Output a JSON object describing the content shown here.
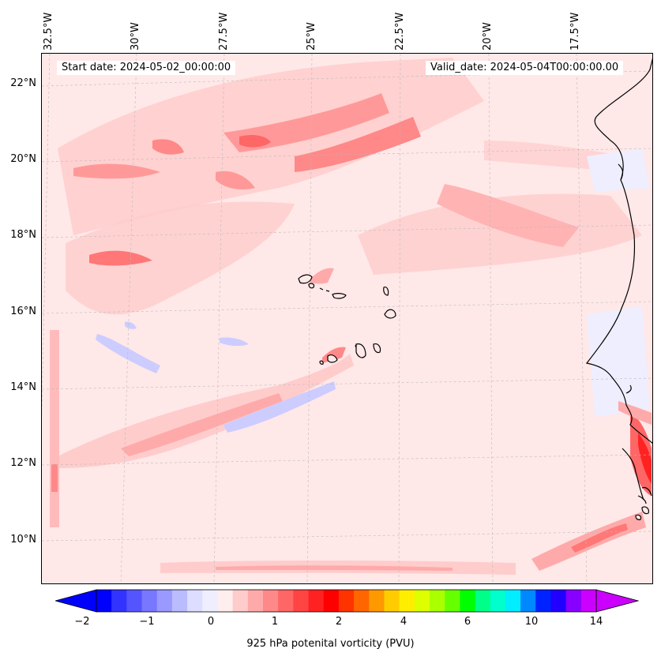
{
  "map": {
    "start_date_label": "Start date: 2024-05-02_00:00:00",
    "valid_date_label": "Valid_date: 2024-05-04T00:00:00.00",
    "longitude_labels": [
      "32.5°W",
      "30°W",
      "27.5°W",
      "25°W",
      "22.5°W",
      "20°W",
      "17.5°W"
    ],
    "latitude_labels": [
      "22°N",
      "20°N",
      "18°N",
      "16°N",
      "14°N",
      "12°N",
      "10°N"
    ],
    "extent": {
      "lon_min": -32.8,
      "lon_max": -15.5,
      "lat_min": 8.8,
      "lat_max": 22.8
    },
    "variable": "925 hPa potential vorticity",
    "colors": {
      "background_field": "#ffe8e8",
      "coastline": "#000000",
      "gridline": "#bbbbbb"
    }
  },
  "colorbar": {
    "title": "925 hPa potenital vorticity (PVU)",
    "tick_labels": [
      "−2",
      "−1",
      "0",
      "1",
      "2",
      "4",
      "6",
      "10",
      "14"
    ],
    "colors": [
      "#0000ff",
      "#3333ff",
      "#5555ff",
      "#7777ff",
      "#9999ff",
      "#bbbbff",
      "#ddddff",
      "#eeeeff",
      "#ffeeee",
      "#ffcccc",
      "#ffaaaa",
      "#ff8888",
      "#ff6666",
      "#ff4444",
      "#ff2222",
      "#ff0000",
      "#ff3300",
      "#ff6600",
      "#ff9900",
      "#ffcc00",
      "#ffee00",
      "#ddff00",
      "#aaff00",
      "#66ff00",
      "#00ff00",
      "#00ff88",
      "#00ffcc",
      "#00eeff",
      "#0088ff",
      "#0022ff",
      "#2200ff",
      "#8800ff",
      "#cc00ff"
    ],
    "under_color": "#0000ff",
    "over_color": "#cc00ff"
  }
}
